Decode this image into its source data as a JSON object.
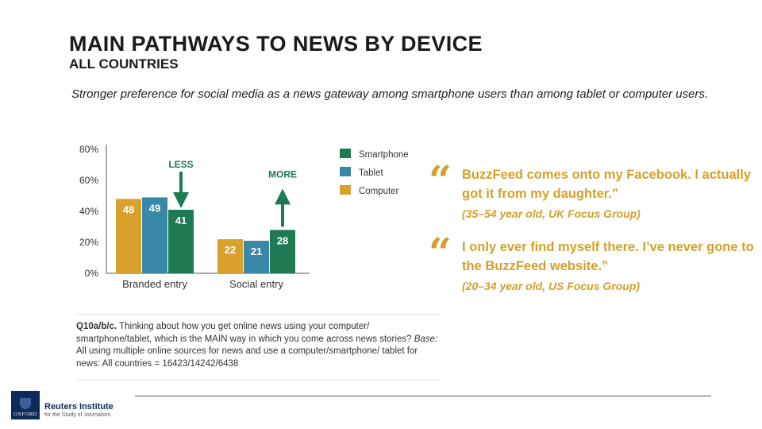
{
  "header": {
    "title": "MAIN PATHWAYS TO NEWS BY DEVICE",
    "subtitle": "ALL COUNTRIES",
    "intro": "Stronger preference for social media as a news gateway among smartphone users than among tablet or computer users."
  },
  "chart_data": {
    "type": "bar",
    "categories": [
      "Branded entry",
      "Social entry"
    ],
    "series": [
      {
        "name": "Computer",
        "color": "#d9a12b",
        "values": [
          48,
          22
        ]
      },
      {
        "name": "Tablet",
        "color": "#3a88a8",
        "values": [
          49,
          21
        ]
      },
      {
        "name": "Smartphone",
        "color": "#1e7a53",
        "values": [
          41,
          28
        ]
      }
    ],
    "ylim": [
      0,
      80
    ],
    "yticks": [
      "0%",
      "20%",
      "40%",
      "60%",
      "80%"
    ],
    "legend_order": [
      "Smartphone",
      "Tablet",
      "Computer"
    ],
    "legend_position": "right",
    "grid": false,
    "annotations": [
      {
        "text": "LESS",
        "direction": "down",
        "category": "Branded entry",
        "series": "Smartphone"
      },
      {
        "text": "MORE",
        "direction": "up",
        "category": "Social entry",
        "series": "Smartphone"
      }
    ],
    "annotation_color": "#1e7a53",
    "label_color": "#ffffff",
    "axis_color": "#555555",
    "text_color": "#333333"
  },
  "quotes": [
    {
      "mark": "“",
      "text": "BuzzFeed comes onto my Facebook. I actually got it from my daughter.”",
      "source": "(35–54 year old, UK Focus Group)"
    },
    {
      "mark": "“",
      "text": "I only ever find myself there. I’ve never gone to the BuzzFeed website.”",
      "source": "(20–34 year old, US Focus Group)"
    }
  ],
  "question": {
    "id": "Q10a/b/c.",
    "text": "Thinking about how you get online news using your computer/ smartphone/tablet, which is the MAIN way in which you come across news stories?",
    "base_label": "Base:",
    "base_text": "All using multiple online sources for news and use a computer/smartphone/ tablet for news: All countries = 16423/14242/6438"
  },
  "footer": {
    "logo_mark_text": "OXFORD",
    "logo_name": "Reuters Institute",
    "logo_tagline": "for the Study of Journalism"
  },
  "colors": {
    "quote": "#d4a02b",
    "brand": "#0e2a5a"
  },
  "icons": [
    "quote-mark-icon",
    "oxford-crest-icon",
    "down-arrow-icon",
    "up-arrow-icon"
  ]
}
